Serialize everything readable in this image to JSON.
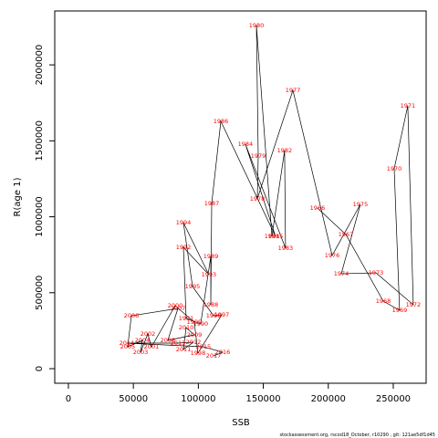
{
  "chart_data": {
    "type": "scatter",
    "xlabel": "SSB",
    "ylabel": "R(age 1)",
    "footnote": "stockassessment.org, rscod18_October, r10290 , git: 121ae5df1d45",
    "xlim": [
      -10500,
      275300
    ],
    "ylim": [
      -96000,
      2355000
    ],
    "xticks": [
      0,
      50000,
      100000,
      150000,
      200000,
      250000
    ],
    "yticks": [
      0,
      500000,
      1000000,
      1500000,
      2000000
    ],
    "label_color": "#ff0000",
    "line_color": "#000000",
    "series": [
      {
        "labels": [
          "1966",
          "1967",
          "1968",
          "1969",
          "1970",
          "1971",
          "1972",
          "1973",
          "1974",
          "1975",
          "1976",
          "1977",
          "1978",
          "1979",
          "1980",
          "1981",
          "1982",
          "1983",
          "1984",
          "1985",
          "1986",
          "1987",
          "1988",
          "1989",
          "1990",
          "1991",
          "1992",
          "1993",
          "1994",
          "1995",
          "1996",
          "1997",
          "1998",
          "1999",
          "2000",
          "2001",
          "2002",
          "2003",
          "2004",
          "2005",
          "2006",
          "2007",
          "2008",
          "2009",
          "2010",
          "2011",
          "2012",
          "2013",
          "2014",
          "2015",
          "2016",
          "2017"
        ],
        "x": [
          191700,
          213500,
          242300,
          254900,
          250700,
          261200,
          265400,
          236700,
          210000,
          224700,
          203000,
          172800,
          145400,
          146100,
          144700,
          156600,
          166400,
          167100,
          136200,
          159400,
          117300,
          110300,
          109600,
          109600,
          101800,
          90600,
          88500,
          108100,
          88500,
          95500,
          111700,
          118000,
          99700,
          96900,
          82200,
          63900,
          61100,
          55500,
          56900,
          45600,
          48500,
          84300,
          76500,
          96900,
          90600,
          88500,
          96200,
          84300,
          44900,
          103900,
          118700,
          111700
        ],
        "y": [
          1057700,
          883400,
          444700,
          384600,
          1316100,
          1730800,
          420700,
          631000,
          625000,
          1081700,
          745000,
          1833000,
          1117800,
          1400200,
          2259600,
          871400,
          1436300,
          793300,
          1478400,
          871400,
          1628600,
          1087700,
          420700,
          739200,
          294500,
          330500,
          799300,
          619000,
          961500,
          540900,
          348600,
          354600,
          102200,
          306500,
          414700,
          144200,
          228400,
          108200,
          186300,
          144200,
          348600,
          396600,
          186300,
          222400,
          270400,
          126200,
          174300,
          168300,
          168300,
          144200,
          108200,
          84100
        ]
      }
    ]
  }
}
